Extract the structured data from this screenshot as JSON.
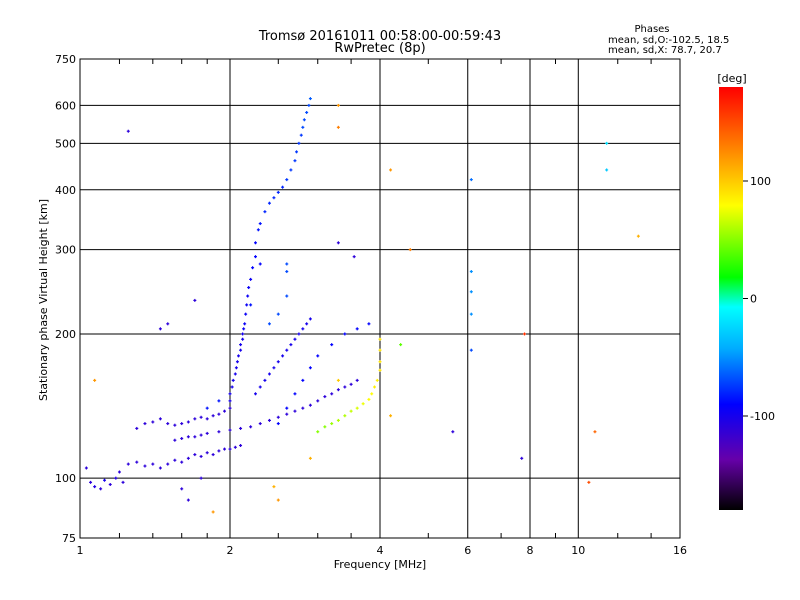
{
  "chart_data": {
    "type": "scatter",
    "title": "Tromsø 20161011 00:58:00-00:59:43",
    "subtitle": "RwPretec (8p)",
    "xlabel": "Frequency [MHz]",
    "ylabel": "Stationary phase Virtual Height [km]",
    "x_scale": "log",
    "y_scale": "log",
    "xlim": [
      1,
      16
    ],
    "ylim": [
      75,
      750
    ],
    "x_ticks": [
      1,
      2,
      4,
      6,
      8,
      10,
      16
    ],
    "y_ticks": [
      75,
      100,
      200,
      300,
      400,
      500,
      600,
      750
    ],
    "grid": true,
    "phase_stats": {
      "header": "Phases",
      "line1": "mean, sd,O:-102.5, 18.5",
      "line2": "mean, sd,X:  78.7, 20.7"
    },
    "colorbar": {
      "unit": "[deg]",
      "min": -180,
      "max": 180,
      "ticks": [
        100,
        0,
        -100
      ],
      "colors": [
        "#000000",
        "#6600aa",
        "#0000ff",
        "#00aaff",
        "#00ffff",
        "#00ff00",
        "#ffff00",
        "#ff8800",
        "#ff0000"
      ]
    },
    "series": [
      {
        "values": [
          {
            "x": 1.03,
            "y": 105,
            "phase": -110
          },
          {
            "x": 1.05,
            "y": 98,
            "phase": -110
          },
          {
            "x": 1.07,
            "y": 96,
            "phase": -105
          },
          {
            "x": 1.1,
            "y": 95,
            "phase": -110
          },
          {
            "x": 1.12,
            "y": 99,
            "phase": -100
          },
          {
            "x": 1.15,
            "y": 97,
            "phase": -110
          },
          {
            "x": 1.18,
            "y": 100,
            "phase": -105
          },
          {
            "x": 1.2,
            "y": 103,
            "phase": -110
          },
          {
            "x": 1.22,
            "y": 98,
            "phase": -110
          },
          {
            "x": 1.25,
            "y": 107,
            "phase": -110
          },
          {
            "x": 1.3,
            "y": 108,
            "phase": -110
          },
          {
            "x": 1.35,
            "y": 106,
            "phase": -110
          },
          {
            "x": 1.4,
            "y": 107,
            "phase": -110
          },
          {
            "x": 1.45,
            "y": 105,
            "phase": -110
          },
          {
            "x": 1.5,
            "y": 107,
            "phase": -110
          },
          {
            "x": 1.55,
            "y": 109,
            "phase": -110
          },
          {
            "x": 1.6,
            "y": 108,
            "phase": -110
          },
          {
            "x": 1.65,
            "y": 110,
            "phase": -110
          },
          {
            "x": 1.7,
            "y": 112,
            "phase": -110
          },
          {
            "x": 1.75,
            "y": 111,
            "phase": -110
          },
          {
            "x": 1.8,
            "y": 113,
            "phase": -110
          },
          {
            "x": 1.85,
            "y": 112,
            "phase": -110
          },
          {
            "x": 1.9,
            "y": 114,
            "phase": -110
          },
          {
            "x": 1.95,
            "y": 115,
            "phase": -110
          },
          {
            "x": 2.0,
            "y": 115,
            "phase": -110
          },
          {
            "x": 2.05,
            "y": 116,
            "phase": -110
          },
          {
            "x": 2.1,
            "y": 117,
            "phase": -110
          },
          {
            "x": 1.3,
            "y": 127,
            "phase": -110
          },
          {
            "x": 1.35,
            "y": 130,
            "phase": -110
          },
          {
            "x": 1.4,
            "y": 131,
            "phase": -110
          },
          {
            "x": 1.45,
            "y": 133,
            "phase": -110
          },
          {
            "x": 1.5,
            "y": 130,
            "phase": -110
          },
          {
            "x": 1.55,
            "y": 129,
            "phase": -110
          },
          {
            "x": 1.6,
            "y": 130,
            "phase": -110
          },
          {
            "x": 1.65,
            "y": 131,
            "phase": -110
          },
          {
            "x": 1.7,
            "y": 133,
            "phase": -110
          },
          {
            "x": 1.75,
            "y": 134,
            "phase": -110
          },
          {
            "x": 1.8,
            "y": 133,
            "phase": -110
          },
          {
            "x": 1.85,
            "y": 135,
            "phase": -110
          },
          {
            "x": 1.9,
            "y": 136,
            "phase": -110
          },
          {
            "x": 1.95,
            "y": 138,
            "phase": -110
          },
          {
            "x": 2.0,
            "y": 140,
            "phase": -110
          },
          {
            "x": 1.55,
            "y": 120,
            "phase": -110
          },
          {
            "x": 1.6,
            "y": 121,
            "phase": -110
          },
          {
            "x": 1.65,
            "y": 122,
            "phase": -110
          },
          {
            "x": 1.7,
            "y": 122,
            "phase": -110
          },
          {
            "x": 1.75,
            "y": 123,
            "phase": -110
          },
          {
            "x": 1.8,
            "y": 124,
            "phase": -110
          },
          {
            "x": 1.9,
            "y": 125,
            "phase": -110
          },
          {
            "x": 2.0,
            "y": 126,
            "phase": -110
          },
          {
            "x": 2.1,
            "y": 127,
            "phase": -110
          },
          {
            "x": 2.2,
            "y": 128,
            "phase": -110
          },
          {
            "x": 2.3,
            "y": 130,
            "phase": -110
          },
          {
            "x": 2.4,
            "y": 132,
            "phase": -110
          },
          {
            "x": 2.5,
            "y": 134,
            "phase": -110
          },
          {
            "x": 2.6,
            "y": 136,
            "phase": -110
          },
          {
            "x": 2.7,
            "y": 138,
            "phase": -110
          },
          {
            "x": 2.8,
            "y": 140,
            "phase": -110
          },
          {
            "x": 2.9,
            "y": 142,
            "phase": -110
          },
          {
            "x": 3.0,
            "y": 145,
            "phase": -110
          },
          {
            "x": 3.1,
            "y": 148,
            "phase": -110
          },
          {
            "x": 3.2,
            "y": 150,
            "phase": -110
          },
          {
            "x": 3.3,
            "y": 153,
            "phase": -110
          },
          {
            "x": 3.4,
            "y": 155,
            "phase": -110
          },
          {
            "x": 3.5,
            "y": 157,
            "phase": -110
          },
          {
            "x": 3.6,
            "y": 160,
            "phase": -110
          },
          {
            "x": 2.0,
            "y": 145,
            "phase": -100
          },
          {
            "x": 2.0,
            "y": 150,
            "phase": -100
          },
          {
            "x": 2.02,
            "y": 155,
            "phase": -100
          },
          {
            "x": 2.03,
            "y": 160,
            "phase": -100
          },
          {
            "x": 2.05,
            "y": 165,
            "phase": -100
          },
          {
            "x": 2.06,
            "y": 170,
            "phase": -100
          },
          {
            "x": 2.07,
            "y": 175,
            "phase": -100
          },
          {
            "x": 2.08,
            "y": 180,
            "phase": -100
          },
          {
            "x": 2.1,
            "y": 185,
            "phase": -100
          },
          {
            "x": 2.1,
            "y": 190,
            "phase": -100
          },
          {
            "x": 2.12,
            "y": 195,
            "phase": -100
          },
          {
            "x": 2.12,
            "y": 200,
            "phase": -100
          },
          {
            "x": 2.13,
            "y": 205,
            "phase": -95
          },
          {
            "x": 2.14,
            "y": 210,
            "phase": -95
          },
          {
            "x": 2.15,
            "y": 220,
            "phase": -95
          },
          {
            "x": 2.16,
            "y": 230,
            "phase": -95
          },
          {
            "x": 2.17,
            "y": 240,
            "phase": -95
          },
          {
            "x": 2.18,
            "y": 250,
            "phase": -95
          },
          {
            "x": 2.2,
            "y": 260,
            "phase": -95
          },
          {
            "x": 2.22,
            "y": 275,
            "phase": -90
          },
          {
            "x": 2.25,
            "y": 290,
            "phase": -90
          },
          {
            "x": 2.25,
            "y": 310,
            "phase": -90
          },
          {
            "x": 2.28,
            "y": 330,
            "phase": -85
          },
          {
            "x": 2.3,
            "y": 340,
            "phase": -85
          },
          {
            "x": 2.35,
            "y": 360,
            "phase": -80
          },
          {
            "x": 2.4,
            "y": 375,
            "phase": -80
          },
          {
            "x": 2.45,
            "y": 385,
            "phase": -80
          },
          {
            "x": 2.5,
            "y": 395,
            "phase": -80
          },
          {
            "x": 2.55,
            "y": 405,
            "phase": -80
          },
          {
            "x": 2.6,
            "y": 420,
            "phase": -75
          },
          {
            "x": 2.65,
            "y": 440,
            "phase": -75
          },
          {
            "x": 2.7,
            "y": 460,
            "phase": -75
          },
          {
            "x": 2.72,
            "y": 480,
            "phase": -75
          },
          {
            "x": 2.75,
            "y": 500,
            "phase": -75
          },
          {
            "x": 2.78,
            "y": 520,
            "phase": -75
          },
          {
            "x": 2.8,
            "y": 540,
            "phase": -70
          },
          {
            "x": 2.82,
            "y": 560,
            "phase": -70
          },
          {
            "x": 2.85,
            "y": 580,
            "phase": -70
          },
          {
            "x": 2.88,
            "y": 600,
            "phase": -70
          },
          {
            "x": 2.9,
            "y": 620,
            "phase": -65
          },
          {
            "x": 2.25,
            "y": 150,
            "phase": -100
          },
          {
            "x": 2.3,
            "y": 155,
            "phase": -100
          },
          {
            "x": 2.35,
            "y": 160,
            "phase": -100
          },
          {
            "x": 2.4,
            "y": 165,
            "phase": -100
          },
          {
            "x": 2.45,
            "y": 170,
            "phase": -100
          },
          {
            "x": 2.5,
            "y": 175,
            "phase": -100
          },
          {
            "x": 2.55,
            "y": 180,
            "phase": -100
          },
          {
            "x": 2.6,
            "y": 185,
            "phase": -100
          },
          {
            "x": 2.65,
            "y": 190,
            "phase": -100
          },
          {
            "x": 2.7,
            "y": 195,
            "phase": -100
          },
          {
            "x": 2.75,
            "y": 200,
            "phase": -100
          },
          {
            "x": 2.8,
            "y": 205,
            "phase": -100
          },
          {
            "x": 2.85,
            "y": 210,
            "phase": -100
          },
          {
            "x": 2.9,
            "y": 215,
            "phase": -100
          },
          {
            "x": 2.5,
            "y": 130,
            "phase": -90
          },
          {
            "x": 2.6,
            "y": 140,
            "phase": -90
          },
          {
            "x": 2.7,
            "y": 150,
            "phase": -90
          },
          {
            "x": 2.8,
            "y": 160,
            "phase": -90
          },
          {
            "x": 2.9,
            "y": 170,
            "phase": -90
          },
          {
            "x": 3.0,
            "y": 180,
            "phase": -90
          },
          {
            "x": 3.2,
            "y": 190,
            "phase": -90
          },
          {
            "x": 3.4,
            "y": 200,
            "phase": -90
          },
          {
            "x": 3.6,
            "y": 205,
            "phase": -90
          },
          {
            "x": 3.8,
            "y": 210,
            "phase": -90
          },
          {
            "x": 1.8,
            "y": 140,
            "phase": -85
          },
          {
            "x": 1.9,
            "y": 145,
            "phase": -85
          },
          {
            "x": 2.2,
            "y": 230,
            "phase": -85
          },
          {
            "x": 2.3,
            "y": 280,
            "phase": -90
          },
          {
            "x": 2.6,
            "y": 280,
            "phase": -70
          },
          {
            "x": 2.6,
            "y": 270,
            "phase": -70
          },
          {
            "x": 2.6,
            "y": 240,
            "phase": -70
          },
          {
            "x": 2.5,
            "y": 220,
            "phase": -70
          },
          {
            "x": 2.4,
            "y": 210,
            "phase": -70
          },
          {
            "x": 1.7,
            "y": 235,
            "phase": -110
          },
          {
            "x": 1.5,
            "y": 210,
            "phase": -110
          },
          {
            "x": 1.45,
            "y": 205,
            "phase": -110
          },
          {
            "x": 1.25,
            "y": 530,
            "phase": -110
          },
          {
            "x": 3.3,
            "y": 310,
            "phase": -110
          },
          {
            "x": 3.55,
            "y": 290,
            "phase": -110
          },
          {
            "x": 7.7,
            "y": 110,
            "phase": -110
          },
          {
            "x": 5.6,
            "y": 125,
            "phase": -110
          },
          {
            "x": 1.6,
            "y": 95,
            "phase": -110
          },
          {
            "x": 1.65,
            "y": 90,
            "phase": -110
          },
          {
            "x": 1.75,
            "y": 100,
            "phase": -110
          },
          {
            "x": 3.0,
            "y": 125,
            "phase": 50
          },
          {
            "x": 3.1,
            "y": 128,
            "phase": 50
          },
          {
            "x": 3.2,
            "y": 130,
            "phase": 55
          },
          {
            "x": 3.3,
            "y": 132,
            "phase": 60
          },
          {
            "x": 3.4,
            "y": 135,
            "phase": 60
          },
          {
            "x": 3.5,
            "y": 138,
            "phase": 65
          },
          {
            "x": 3.6,
            "y": 140,
            "phase": 70
          },
          {
            "x": 3.7,
            "y": 143,
            "phase": 75
          },
          {
            "x": 3.8,
            "y": 146,
            "phase": 80
          },
          {
            "x": 3.85,
            "y": 150,
            "phase": 80
          },
          {
            "x": 3.9,
            "y": 155,
            "phase": 85
          },
          {
            "x": 3.95,
            "y": 160,
            "phase": 85
          },
          {
            "x": 4.0,
            "y": 168,
            "phase": 90
          },
          {
            "x": 4.0,
            "y": 175,
            "phase": 90
          },
          {
            "x": 4.0,
            "y": 185,
            "phase": 90
          },
          {
            "x": 4.0,
            "y": 195,
            "phase": 90
          },
          {
            "x": 6.1,
            "y": 420,
            "phase": -60
          },
          {
            "x": 6.1,
            "y": 270,
            "phase": -50
          },
          {
            "x": 6.1,
            "y": 245,
            "phase": -50
          },
          {
            "x": 6.1,
            "y": 220,
            "phase": -50
          },
          {
            "x": 6.1,
            "y": 185,
            "phase": -70
          },
          {
            "x": 11.4,
            "y": 500,
            "phase": -20
          },
          {
            "x": 11.4,
            "y": 440,
            "phase": -30
          },
          {
            "x": 13.2,
            "y": 320,
            "phase": 110
          },
          {
            "x": 4.6,
            "y": 300,
            "phase": 130
          },
          {
            "x": 4.2,
            "y": 440,
            "phase": 120
          },
          {
            "x": 3.3,
            "y": 600,
            "phase": 120
          },
          {
            "x": 3.3,
            "y": 540,
            "phase": 130
          },
          {
            "x": 7.8,
            "y": 200,
            "phase": 160
          },
          {
            "x": 10.8,
            "y": 125,
            "phase": 140
          },
          {
            "x": 10.5,
            "y": 98,
            "phase": 150
          },
          {
            "x": 4.4,
            "y": 190,
            "phase": 40
          },
          {
            "x": 4.2,
            "y": 135,
            "phase": 110
          },
          {
            "x": 2.9,
            "y": 110,
            "phase": 110
          },
          {
            "x": 2.5,
            "y": 90,
            "phase": 120
          },
          {
            "x": 2.45,
            "y": 96,
            "phase": 110
          },
          {
            "x": 1.85,
            "y": 85,
            "phase": 120
          },
          {
            "x": 1.07,
            "y": 160,
            "phase": 120
          },
          {
            "x": 3.3,
            "y": 160,
            "phase": 100
          }
        ]
      }
    ]
  }
}
